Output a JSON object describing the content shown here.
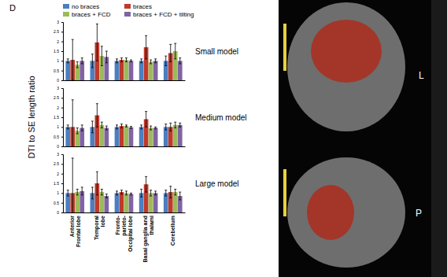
{
  "panel_label": "D",
  "y_label": "DTI to SE length ratio",
  "images": {
    "labels": [
      "L",
      "P"
    ]
  },
  "chart_data": [
    {
      "type": "bar",
      "title": "Small model",
      "categories": [
        "Anterior\nFrontal lobe",
        "Temporal\nlobe",
        "Fronto-\nparieto-\nOccipital lobe",
        "Basal ganglia and\nthalami",
        "Cerebellum"
      ],
      "ylim": [
        0,
        3
      ],
      "yticks": [
        0,
        0.5,
        1,
        1.5,
        2,
        2.5,
        3
      ],
      "series": [
        {
          "name": "no braces",
          "color": "#4a7fc1",
          "values": [
            1.0,
            1.0,
            1.0,
            1.0,
            1.0
          ],
          "errors": [
            0.1,
            0.35,
            0.1,
            0.1,
            0.25
          ]
        },
        {
          "name": "braces",
          "color": "#c0392b",
          "values": [
            1.05,
            1.95,
            1.05,
            1.7,
            1.4
          ],
          "errors": [
            1.05,
            0.95,
            0.1,
            0.6,
            0.45
          ]
        },
        {
          "name": "braces + FCD",
          "color": "#9bbb59",
          "values": [
            0.8,
            1.25,
            1.05,
            0.95,
            1.5
          ],
          "errors": [
            0.15,
            0.5,
            0.1,
            0.1,
            0.4
          ]
        },
        {
          "name": "braces + FCD + tilting",
          "color": "#8064a2",
          "values": [
            1.0,
            1.2,
            1.0,
            1.0,
            1.0
          ],
          "errors": [
            0.15,
            0.3,
            0.05,
            0.1,
            0.15
          ]
        }
      ]
    },
    {
      "type": "bar",
      "title": "Medium model",
      "categories": [
        "Anterior\nFrontal lobe",
        "Temporal\nlobe",
        "Fronto-\nparieto-\nOccipital lobe",
        "Basal ganglia and\nthalami",
        "Cerebellum"
      ],
      "ylim": [
        0,
        3
      ],
      "yticks": [
        0,
        0.5,
        1,
        1.5,
        2,
        2.5,
        3
      ],
      "series": [
        {
          "color": "#4a7fc1",
          "values": [
            1.0,
            1.0,
            1.0,
            1.0,
            1.0
          ],
          "errors": [
            0.1,
            0.3,
            0.1,
            0.1,
            0.15
          ]
        },
        {
          "color": "#c0392b",
          "values": [
            1.0,
            1.6,
            1.05,
            1.4,
            1.0
          ],
          "errors": [
            1.4,
            0.6,
            0.1,
            0.4,
            0.2
          ]
        },
        {
          "color": "#9bbb59",
          "values": [
            0.8,
            1.1,
            1.05,
            0.95,
            1.1
          ],
          "errors": [
            0.15,
            0.15,
            0.05,
            0.1,
            0.15
          ]
        },
        {
          "color": "#8064a2",
          "values": [
            0.95,
            0.95,
            0.98,
            0.95,
            1.1
          ],
          "errors": [
            0.15,
            0.1,
            0.05,
            0.05,
            0.1
          ]
        }
      ]
    },
    {
      "type": "bar",
      "title": "Large model",
      "categories": [
        "Anterior\nFrontal lobe",
        "Temporal\nlobe",
        "Fronto-\nparieto-\nOccipital lobe",
        "Basal ganglia and\nthalami",
        "Cerebellum"
      ],
      "ylim": [
        0,
        3
      ],
      "yticks": [
        0,
        0.5,
        1,
        1.5,
        2,
        2.5,
        3
      ],
      "series": [
        {
          "color": "#4a7fc1",
          "values": [
            1.0,
            1.0,
            1.0,
            1.0,
            1.0
          ],
          "errors": [
            0.15,
            0.3,
            0.1,
            0.2,
            0.15
          ]
        },
        {
          "color": "#c0392b",
          "values": [
            1.0,
            1.5,
            1.05,
            1.45,
            1.05
          ],
          "errors": [
            1.8,
            0.6,
            0.1,
            0.4,
            0.3
          ]
        },
        {
          "color": "#9bbb59",
          "values": [
            1.05,
            1.05,
            1.0,
            1.0,
            1.05
          ],
          "errors": [
            0.15,
            0.15,
            0.1,
            0.15,
            0.15
          ]
        },
        {
          "color": "#8064a2",
          "values": [
            1.1,
            0.85,
            0.95,
            1.0,
            0.85
          ],
          "errors": [
            0.2,
            0.1,
            0.05,
            0.1,
            0.2
          ]
        }
      ]
    }
  ]
}
